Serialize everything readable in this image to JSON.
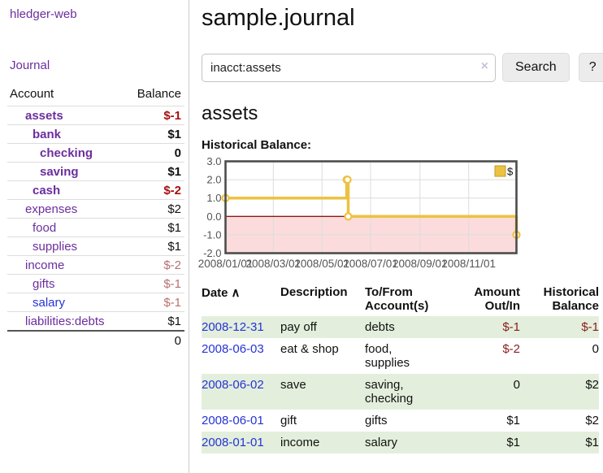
{
  "app": {
    "brand": "hledger-web",
    "nav_journal": "Journal"
  },
  "sidebar": {
    "headers": {
      "account": "Account",
      "balance": "Balance"
    },
    "accounts": [
      {
        "name": "assets",
        "depth": 0,
        "balance": "$-1"
      },
      {
        "name": "bank",
        "depth": 1,
        "balance": "$1"
      },
      {
        "name": "checking",
        "depth": 2,
        "balance": "0"
      },
      {
        "name": "saving",
        "depth": 2,
        "balance": "$1"
      },
      {
        "name": "cash",
        "depth": 1,
        "balance": "$-2"
      },
      {
        "name": "expenses",
        "depth": 0,
        "balance": "$2"
      },
      {
        "name": "food",
        "depth": 1,
        "balance": "$1"
      },
      {
        "name": "supplies",
        "depth": 1,
        "balance": "$1"
      },
      {
        "name": "income",
        "depth": 0,
        "balance": "$-2"
      },
      {
        "name": "gifts",
        "depth": 1,
        "balance": "$-1"
      },
      {
        "name": "salary",
        "depth": 1,
        "balance": "$-1"
      },
      {
        "name": "liabilities:debts",
        "depth": 0,
        "balance": "$1"
      }
    ],
    "total": "0"
  },
  "header": {
    "title": "sample.journal"
  },
  "search": {
    "value": "inacct:assets",
    "clear_icon": "×",
    "button_label": "Search",
    "help_label": "?"
  },
  "account_page": {
    "title": "assets",
    "chart_label": "Historical Balance:"
  },
  "chart_data": {
    "type": "line",
    "step": true,
    "title": "Historical Balance:",
    "series": [
      {
        "name": "$",
        "color": "#edc240",
        "points": [
          {
            "x": "2008-01-01",
            "y": 1
          },
          {
            "x": "2008-06-01",
            "y": 2
          },
          {
            "x": "2008-06-02",
            "y": 2
          },
          {
            "x": "2008-06-03",
            "y": 0
          },
          {
            "x": "2008-12-31",
            "y": -1
          }
        ]
      }
    ],
    "x_range": [
      "2008-01-01",
      "2008-12-31"
    ],
    "x_ticks": [
      "2008/01/01",
      "2008/03/01",
      "2008/05/01",
      "2008/07/01",
      "2008/09/01",
      "2008/11/01"
    ],
    "y_ticks": [
      "3.0",
      "2.0",
      "1.0",
      "0.0",
      "-1.0",
      "-2.0"
    ],
    "ylim": [
      -2,
      3
    ],
    "grid": true,
    "legend": {
      "position": "top-right",
      "label": "$"
    },
    "negative_region_color": "#fbdbdb",
    "zero_line_color": "#8b1a1a"
  },
  "register": {
    "sort_icon": "∧",
    "columns": {
      "date": "Date",
      "description": "Description",
      "accounts": "To/From Account(s)",
      "amount": "Amount Out/In",
      "balance": "Historical Balance"
    },
    "rows": [
      {
        "date": "2008-12-31",
        "description": "pay off",
        "accounts": "debts",
        "amount": "$-1",
        "balance": "$-1"
      },
      {
        "date": "2008-06-03",
        "description": "eat & shop",
        "accounts": "food, supplies",
        "amount": "$-2",
        "balance": "0"
      },
      {
        "date": "2008-06-02",
        "description": "save",
        "accounts": "saving, checking",
        "amount": "0",
        "balance": "$2"
      },
      {
        "date": "2008-06-01",
        "description": "gift",
        "accounts": "gifts",
        "amount": "$1",
        "balance": "$2"
      },
      {
        "date": "2008-01-01",
        "description": "income",
        "accounts": "salary",
        "amount": "$1",
        "balance": "$1"
      }
    ]
  }
}
